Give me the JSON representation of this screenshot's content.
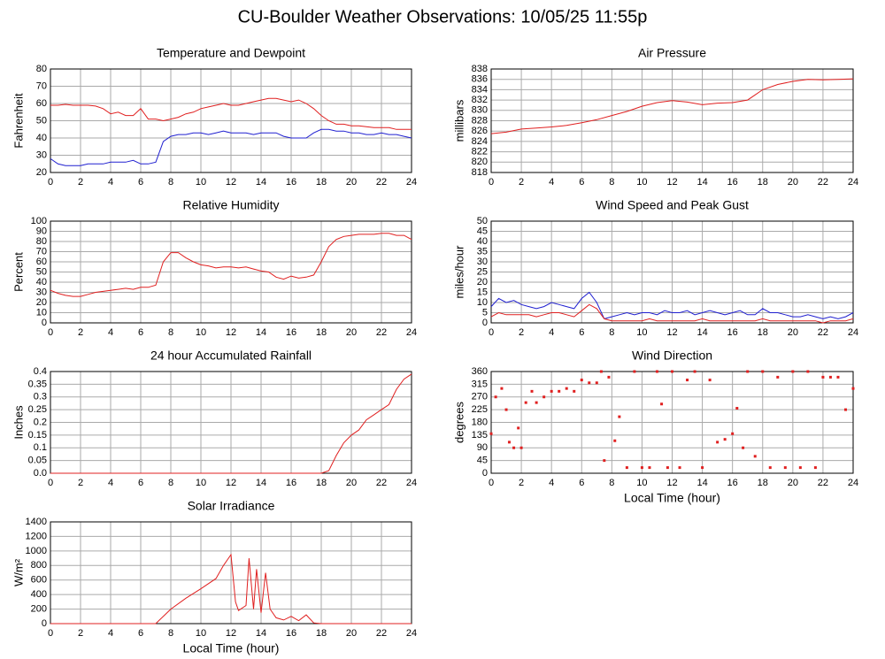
{
  "title": "CU-Boulder Weather Observations: 10/05/25 11:55p",
  "chart_data": [
    {
      "type": "line",
      "title": "Temperature and Dewpoint",
      "ylabel": "Fahrenheit",
      "xlim": [
        0,
        24
      ],
      "xticks": [
        0,
        2,
        4,
        6,
        8,
        10,
        12,
        14,
        16,
        18,
        20,
        22,
        24
      ],
      "ylim": [
        20,
        80
      ],
      "yticks": [
        20,
        30,
        40,
        50,
        60,
        70,
        80
      ],
      "grid": true,
      "x": [
        0,
        0.5,
        1,
        1.5,
        2,
        2.5,
        3,
        3.5,
        4,
        4.5,
        5,
        5.5,
        6,
        6.5,
        7,
        7.5,
        8,
        8.5,
        9,
        9.5,
        10,
        10.5,
        11,
        11.5,
        12,
        12.5,
        13,
        13.5,
        14,
        14.5,
        15,
        15.5,
        16,
        16.5,
        17,
        17.5,
        18,
        18.5,
        19,
        19.5,
        20,
        20.5,
        21,
        21.5,
        22,
        22.5,
        23,
        23.5,
        24
      ],
      "series": [
        {
          "color": "#e02020",
          "values": [
            59,
            59,
            59.5,
            59,
            59,
            59,
            58.5,
            57,
            54,
            55,
            53,
            53,
            57,
            51,
            51,
            50,
            51,
            52,
            54,
            55,
            57,
            58,
            59,
            60,
            59,
            59,
            60,
            61,
            62,
            63,
            63,
            62,
            61,
            62,
            60,
            57,
            53,
            50,
            48,
            48,
            47,
            47,
            46.5,
            46,
            46,
            46,
            45,
            45,
            45
          ]
        },
        {
          "color": "#2020d0",
          "values": [
            28,
            25,
            24,
            24,
            24,
            25,
            25,
            25,
            26,
            26,
            26,
            27,
            25,
            25,
            26,
            38,
            41,
            42,
            42,
            43,
            43,
            42,
            43,
            44,
            43,
            43,
            43,
            42,
            43,
            43,
            43,
            41,
            40,
            40,
            40,
            43,
            45,
            45,
            44,
            44,
            43,
            43,
            42,
            42,
            43,
            42,
            42,
            41,
            40
          ]
        }
      ]
    },
    {
      "type": "line",
      "title": "Air Pressure",
      "ylabel": "millibars",
      "xlim": [
        0,
        24
      ],
      "xticks": [
        0,
        2,
        4,
        6,
        8,
        10,
        12,
        14,
        16,
        18,
        20,
        22,
        24
      ],
      "ylim": [
        818,
        838
      ],
      "yticks": [
        818,
        820,
        822,
        824,
        826,
        828,
        830,
        832,
        834,
        836,
        838
      ],
      "grid": true,
      "x": [
        0,
        1,
        2,
        3,
        4,
        5,
        6,
        7,
        8,
        9,
        10,
        11,
        12,
        13,
        14,
        15,
        16,
        17,
        17.5,
        18,
        19,
        20,
        21,
        22,
        23,
        24
      ],
      "series": [
        {
          "color": "#e02020",
          "values": [
            825.5,
            825.8,
            826.4,
            826.6,
            826.8,
            827.1,
            827.6,
            828.2,
            829,
            829.8,
            830.8,
            831.5,
            831.9,
            831.6,
            831.1,
            831.4,
            831.5,
            832,
            833,
            834,
            835,
            835.6,
            836,
            835.9,
            836,
            836.1
          ]
        }
      ]
    },
    {
      "type": "line",
      "title": "Relative Humidity",
      "ylabel": "Percent",
      "xlim": [
        0,
        24
      ],
      "xticks": [
        0,
        2,
        4,
        6,
        8,
        10,
        12,
        14,
        16,
        18,
        20,
        22,
        24
      ],
      "ylim": [
        0,
        100
      ],
      "yticks": [
        0,
        10,
        20,
        30,
        40,
        50,
        60,
        70,
        80,
        90,
        100
      ],
      "grid": true,
      "x": [
        0,
        0.5,
        1,
        1.5,
        2,
        2.5,
        3,
        3.5,
        4,
        4.5,
        5,
        5.5,
        6,
        6.5,
        7,
        7.5,
        8,
        8.5,
        9,
        9.5,
        10,
        10.5,
        11,
        11.5,
        12,
        12.5,
        13,
        13.5,
        14,
        14.5,
        15,
        15.5,
        16,
        16.5,
        17,
        17.5,
        18,
        18.5,
        19,
        19.5,
        20,
        20.5,
        21,
        21.5,
        22,
        22.5,
        23,
        23.5,
        24
      ],
      "series": [
        {
          "color": "#e02020",
          "values": [
            32,
            29,
            27,
            26,
            26,
            28,
            30,
            31,
            32,
            33,
            34,
            33,
            35,
            35,
            37,
            60,
            69,
            69,
            64,
            60,
            57,
            56,
            54,
            55,
            55,
            54,
            55,
            53,
            51,
            50,
            45,
            43,
            46,
            44,
            45,
            47,
            60,
            75,
            82,
            85,
            86,
            87,
            87,
            87,
            88,
            88,
            86,
            86,
            82
          ]
        }
      ]
    },
    {
      "type": "line",
      "title": "Wind Speed and Peak Gust",
      "ylabel": "miles/hour",
      "xlim": [
        0,
        24
      ],
      "xticks": [
        0,
        2,
        4,
        6,
        8,
        10,
        12,
        14,
        16,
        18,
        20,
        22,
        24
      ],
      "ylim": [
        0,
        50
      ],
      "yticks": [
        0,
        5,
        10,
        15,
        20,
        25,
        30,
        35,
        40,
        45,
        50
      ],
      "grid": true,
      "x": [
        0,
        0.5,
        1,
        1.5,
        2,
        2.5,
        3,
        3.5,
        4,
        4.5,
        5,
        5.5,
        6,
        6.5,
        7,
        7.5,
        8,
        8.5,
        9,
        9.5,
        10,
        10.5,
        11,
        11.5,
        12,
        12.5,
        13,
        13.5,
        14,
        14.5,
        15,
        15.5,
        16,
        16.5,
        17,
        17.5,
        18,
        18.5,
        19,
        19.5,
        20,
        20.5,
        21,
        21.5,
        22,
        22.5,
        23,
        23.5,
        24
      ],
      "series": [
        {
          "color": "#2020d0",
          "values": [
            8,
            12,
            10,
            11,
            9,
            8,
            7,
            8,
            10,
            9,
            8,
            7,
            12,
            15,
            10,
            2,
            3,
            4,
            5,
            4,
            5,
            5,
            4,
            6,
            5,
            5,
            6,
            4,
            5,
            6,
            5,
            4,
            5,
            6,
            4,
            4,
            7,
            5,
            5,
            4,
            3,
            3,
            4,
            3,
            2,
            3,
            2,
            3,
            5
          ]
        },
        {
          "color": "#e02020",
          "values": [
            3,
            5,
            4,
            4,
            4,
            4,
            3,
            4,
            5,
            5,
            4,
            3,
            6,
            9,
            7,
            2,
            1,
            1,
            1,
            1,
            1,
            2,
            1,
            1,
            1,
            1,
            1,
            1,
            2,
            1,
            1,
            1,
            1,
            1,
            1,
            1,
            2,
            1,
            1,
            1,
            1,
            1,
            1,
            1,
            0,
            1,
            1,
            1,
            2
          ]
        }
      ]
    },
    {
      "type": "line",
      "title": "24 hour Accumulated Rainfall",
      "ylabel": "Inches",
      "xlim": [
        0,
        24
      ],
      "xticks": [
        0,
        2,
        4,
        6,
        8,
        10,
        12,
        14,
        16,
        18,
        20,
        22,
        24
      ],
      "ylim": [
        0,
        0.4
      ],
      "yticks": [
        {
          "value": 0,
          "label": "0.0"
        },
        0.05,
        0.1,
        0.15,
        0.2,
        0.25,
        0.3,
        0.35,
        0.4
      ],
      "grid": true,
      "x": [
        0,
        17.5,
        18,
        18.5,
        19,
        19.5,
        20,
        20.5,
        21,
        21.5,
        22,
        22.5,
        23,
        23.5,
        24
      ],
      "series": [
        {
          "color": "#e02020",
          "values": [
            0,
            0,
            0,
            0.01,
            0.07,
            0.12,
            0.15,
            0.17,
            0.21,
            0.23,
            0.25,
            0.27,
            0.33,
            0.37,
            0.39
          ]
        }
      ]
    },
    {
      "type": "scatter",
      "title": "Wind Direction",
      "ylabel": "degrees",
      "xlabel": "Local Time (hour)",
      "xlim": [
        0,
        24
      ],
      "xticks": [
        0,
        2,
        4,
        6,
        8,
        10,
        12,
        14,
        16,
        18,
        20,
        22,
        24
      ],
      "ylim": [
        0,
        360
      ],
      "yticks": [
        0,
        45,
        90,
        135,
        180,
        225,
        270,
        315,
        360
      ],
      "grid": true,
      "x": [
        0,
        0.3,
        0.7,
        1,
        1.2,
        1.5,
        1.8,
        2,
        2.3,
        2.7,
        3,
        3.5,
        4,
        4.5,
        5,
        5.5,
        6,
        6.5,
        7,
        7.3,
        7.5,
        7.8,
        8.2,
        8.5,
        9,
        9.5,
        10,
        10.5,
        11,
        11.3,
        11.7,
        12,
        12.5,
        13,
        13.5,
        14,
        14.5,
        15,
        15.5,
        16,
        16.3,
        16.7,
        17,
        17.5,
        18,
        18.5,
        19,
        19.5,
        20,
        20.5,
        21,
        21.5,
        22,
        22.5,
        23,
        23.5,
        24
      ],
      "series": [
        {
          "color": "#e02020",
          "values": [
            140,
            270,
            300,
            225,
            110,
            90,
            160,
            90,
            250,
            290,
            250,
            270,
            290,
            290,
            300,
            290,
            330,
            320,
            320,
            360,
            45,
            340,
            115,
            200,
            20,
            360,
            20,
            20,
            360,
            245,
            20,
            360,
            20,
            330,
            360,
            20,
            330,
            110,
            120,
            140,
            230,
            90,
            360,
            60,
            360,
            20,
            340,
            20,
            360,
            20,
            360,
            20,
            340,
            340,
            340,
            225,
            300
          ]
        }
      ]
    },
    {
      "type": "line",
      "title": "Solar Irradiance",
      "ylabel": "W/m²",
      "xlabel": "Local Time (hour)",
      "xlim": [
        0,
        24
      ],
      "xticks": [
        0,
        2,
        4,
        6,
        8,
        10,
        12,
        14,
        16,
        18,
        20,
        22,
        24
      ],
      "ylim": [
        0,
        1400
      ],
      "yticks": [
        0,
        200,
        400,
        600,
        800,
        1000,
        1200,
        1400
      ],
      "grid": true,
      "x": [
        0,
        7,
        8,
        9,
        10,
        11,
        11.5,
        12,
        12.3,
        12.5,
        13,
        13.2,
        13.5,
        13.7,
        14,
        14.3,
        14.6,
        15,
        15.5,
        16,
        16.5,
        17,
        17.5,
        18,
        24
      ],
      "series": [
        {
          "color": "#e02020",
          "values": [
            0,
            0,
            200,
            350,
            480,
            620,
            800,
            950,
            300,
            180,
            250,
            900,
            200,
            750,
            150,
            700,
            200,
            80,
            50,
            100,
            40,
            120,
            10,
            0,
            0
          ]
        }
      ]
    }
  ]
}
